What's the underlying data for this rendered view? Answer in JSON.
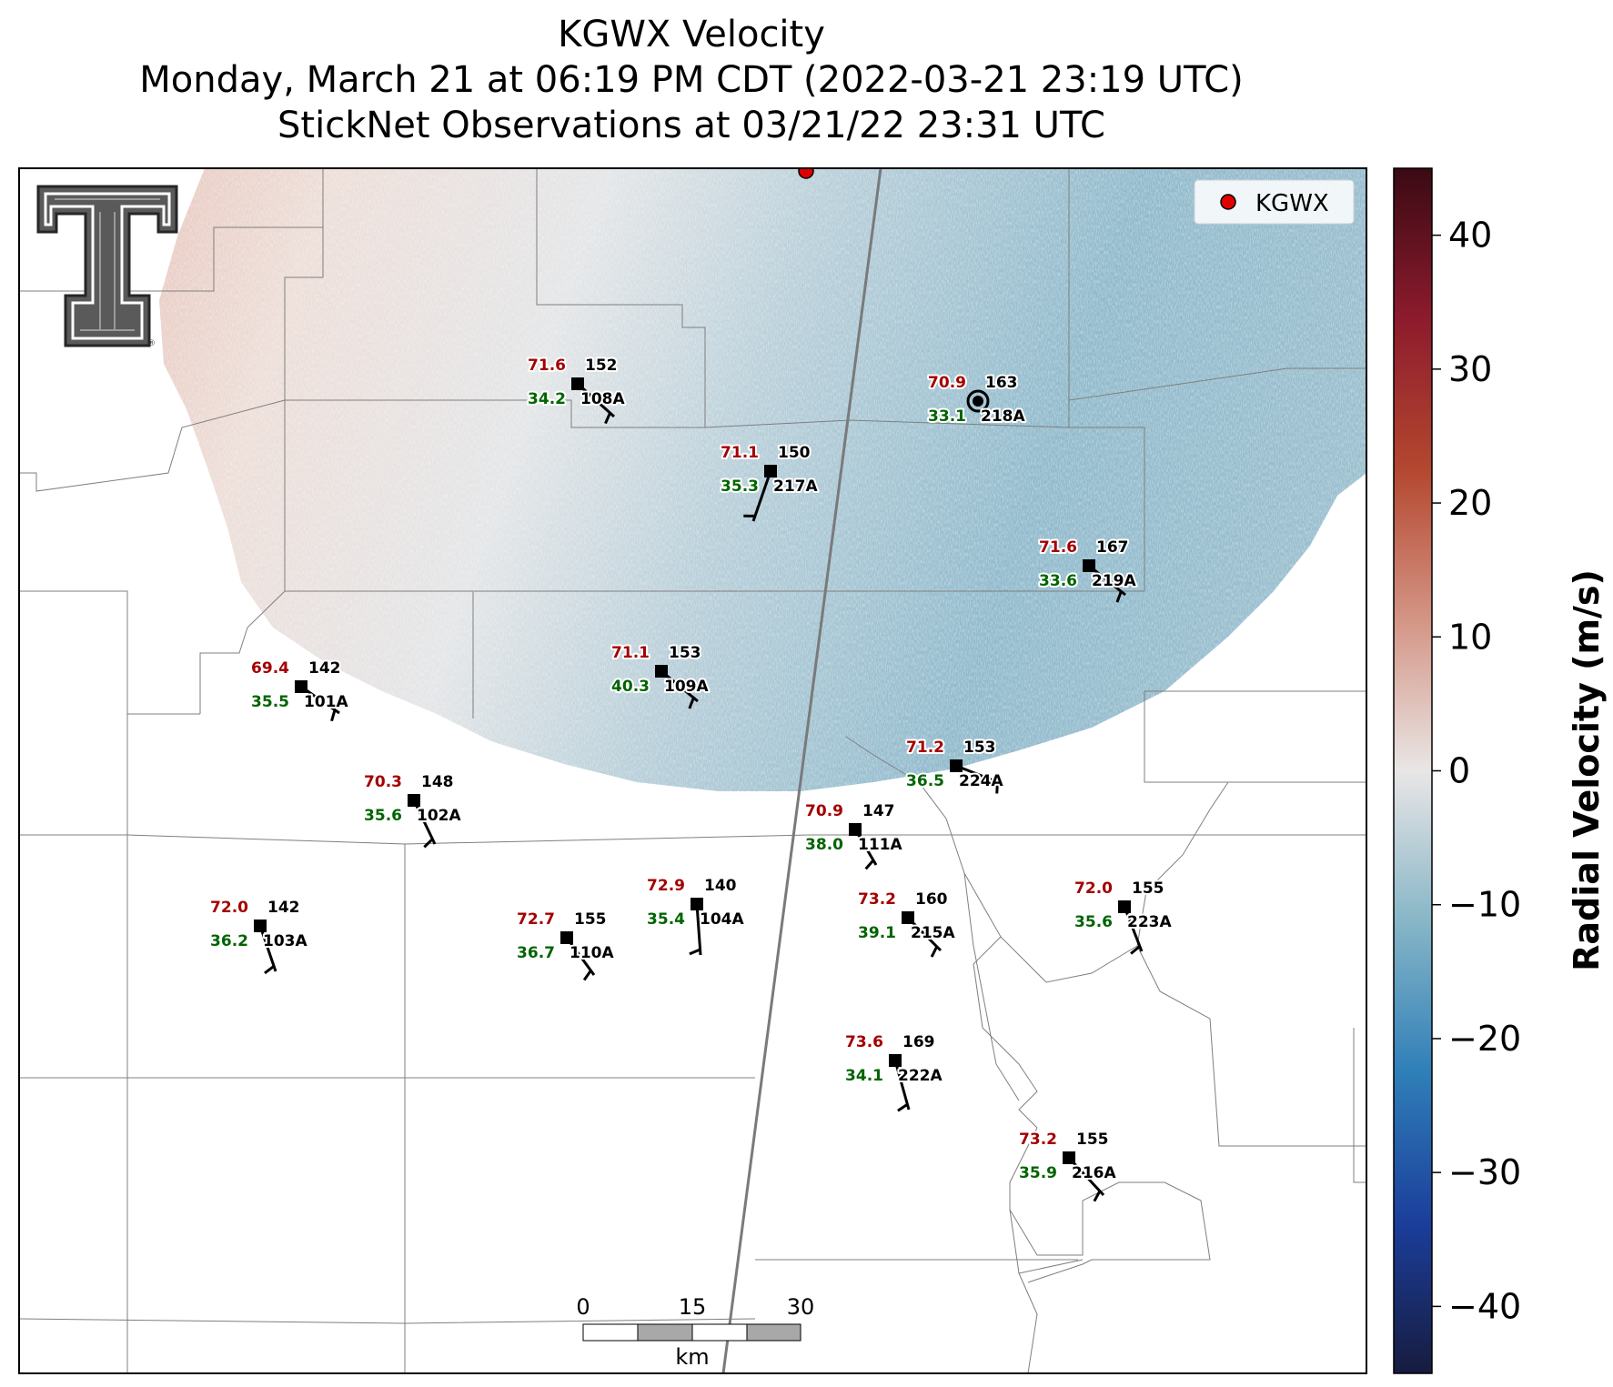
{
  "title": {
    "line1": "KGWX Velocity",
    "line2": "Monday, March 21 at 06:19 PM CDT (2022-03-21 23:19 UTC)",
    "line3": "StickNet Observations at 03/21/22 23:31 UTC"
  },
  "legend": {
    "label": "KGWX",
    "marker_color": "#e00000"
  },
  "colorbar": {
    "label": "Radial Velocity (m/s)",
    "vmin": -45,
    "vmax": 45,
    "ticks": [
      40,
      30,
      20,
      10,
      0,
      -10,
      -20,
      -30,
      -40
    ],
    "tick_labels": [
      "40",
      "30",
      "20",
      "10",
      "0",
      "−10",
      "−20",
      "−30",
      "−40"
    ],
    "colors": [
      "#171c3f",
      "#1b3e9b",
      "#2f7fb8",
      "#87b6c7",
      "#e9e6e6",
      "#d49585",
      "#b4472f",
      "#8d1b2d",
      "#3a0a14"
    ]
  },
  "scale_bar": {
    "ticks": [
      "0",
      "15",
      "30"
    ],
    "unit": "km"
  },
  "logo": {
    "name": "Texas Tech double-T logo",
    "mark": "®"
  },
  "stations": [
    {
      "id": "108A",
      "temp": "71.6",
      "dew": "34.2",
      "pres": "152",
      "lon": 0,
      "lat": 0
    },
    {
      "id": "218A",
      "temp": "70.9",
      "dew": "33.1",
      "pres": "163"
    },
    {
      "id": "217A",
      "temp": "71.1",
      "dew": "35.3",
      "pres": "150"
    },
    {
      "id": "219A",
      "temp": "71.6",
      "dew": "33.6",
      "pres": "167"
    },
    {
      "id": "101A",
      "temp": "69.4",
      "dew": "35.5",
      "pres": "142"
    },
    {
      "id": "109A",
      "temp": "71.1",
      "dew": "40.3",
      "pres": "153"
    },
    {
      "id": "224A",
      "temp": "71.2",
      "dew": "36.5",
      "pres": "153"
    },
    {
      "id": "102A",
      "temp": "70.3",
      "dew": "35.6",
      "pres": "148"
    },
    {
      "id": "111A",
      "temp": "70.9",
      "dew": "38.0",
      "pres": "147"
    },
    {
      "id": "104A",
      "temp": "72.9",
      "dew": "35.4",
      "pres": "140"
    },
    {
      "id": "103A",
      "temp": "72.0",
      "dew": "36.2",
      "pres": "142"
    },
    {
      "id": "110A",
      "temp": "72.7",
      "dew": "36.7",
      "pres": "155"
    },
    {
      "id": "215A",
      "temp": "73.2",
      "dew": "39.1",
      "pres": "160"
    },
    {
      "id": "223A",
      "temp": "72.0",
      "dew": "35.6",
      "pres": "155"
    },
    {
      "id": "222A",
      "temp": "73.6",
      "dew": "34.1",
      "pres": "169"
    },
    {
      "id": "216A",
      "temp": "73.2",
      "dew": "35.9",
      "pres": "155"
    }
  ]
}
